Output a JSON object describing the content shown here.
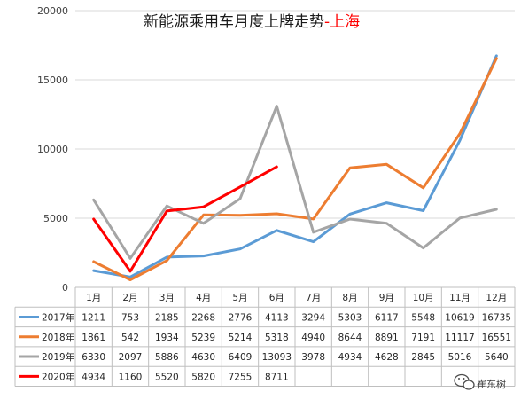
{
  "chart_data": {
    "type": "line",
    "title": "新能源乘用车月度上牌走势",
    "title_dash": "-",
    "title_city": "上海",
    "categories": [
      "1月",
      "2月",
      "3月",
      "4月",
      "5月",
      "6月",
      "7月",
      "8月",
      "9月",
      "10月",
      "11月",
      "12月"
    ],
    "yticks": [
      0,
      5000,
      10000,
      15000,
      20000
    ],
    "ylim": [
      0,
      20000
    ],
    "grid": true,
    "series": [
      {
        "name": "2017年",
        "color": "#5b9bd5",
        "values": [
          1211,
          753,
          2185,
          2268,
          2776,
          4113,
          3294,
          5303,
          6117,
          5548,
          10619,
          16735
        ]
      },
      {
        "name": "2018年",
        "color": "#ed7d31",
        "values": [
          1861,
          542,
          1934,
          5239,
          5214,
          5318,
          4940,
          8644,
          8891,
          7191,
          11117,
          16551
        ]
      },
      {
        "name": "2019年",
        "color": "#a5a5a5",
        "values": [
          6330,
          2097,
          5886,
          4630,
          6409,
          13093,
          3978,
          4934,
          4628,
          2845,
          5016,
          5640
        ]
      },
      {
        "name": "2020年",
        "color": "#ff0000",
        "values": [
          4934,
          1160,
          5520,
          5820,
          7255,
          8711,
          null,
          null,
          null,
          null,
          null,
          null
        ]
      }
    ]
  },
  "watermark": {
    "icon": "wechat-icon",
    "text": "崔东树"
  }
}
